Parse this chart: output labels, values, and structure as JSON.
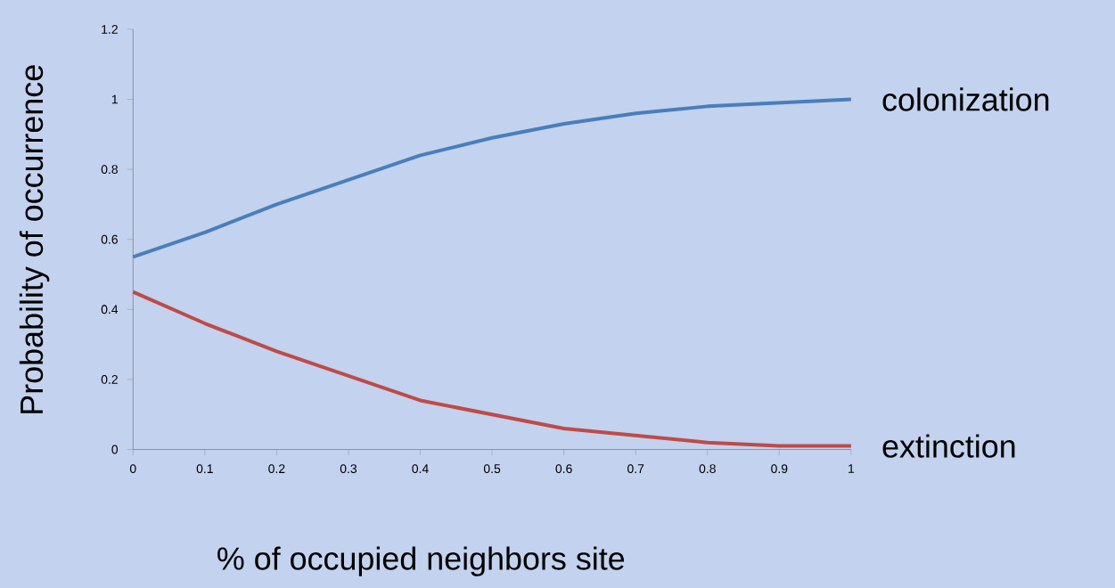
{
  "chart_data": {
    "type": "line",
    "xlabel": "% of occupied neighbors site",
    "ylabel": "Probability of occurrence",
    "x": [
      0,
      0.1,
      0.2,
      0.3,
      0.4,
      0.5,
      0.6,
      0.7,
      0.8,
      0.9,
      1
    ],
    "series": [
      {
        "name": "colonization",
        "color": "#4a7ebb",
        "values": [
          0.55,
          0.62,
          0.7,
          0.77,
          0.84,
          0.89,
          0.93,
          0.96,
          0.98,
          0.99,
          1.0
        ]
      },
      {
        "name": "extinction",
        "color": "#be4b48",
        "values": [
          0.45,
          0.36,
          0.28,
          0.21,
          0.14,
          0.1,
          0.06,
          0.04,
          0.02,
          0.01,
          0.01
        ]
      }
    ],
    "xlim": [
      0,
      1
    ],
    "ylim": [
      0,
      1.2
    ],
    "xticks": [
      0,
      0.1,
      0.2,
      0.3,
      0.4,
      0.5,
      0.6,
      0.7,
      0.8,
      0.9,
      1
    ],
    "yticks": [
      0,
      0.2,
      0.4,
      0.6,
      0.8,
      1,
      1.2
    ],
    "grid": false,
    "legend": false,
    "marker": "none",
    "line_style": "solid"
  }
}
